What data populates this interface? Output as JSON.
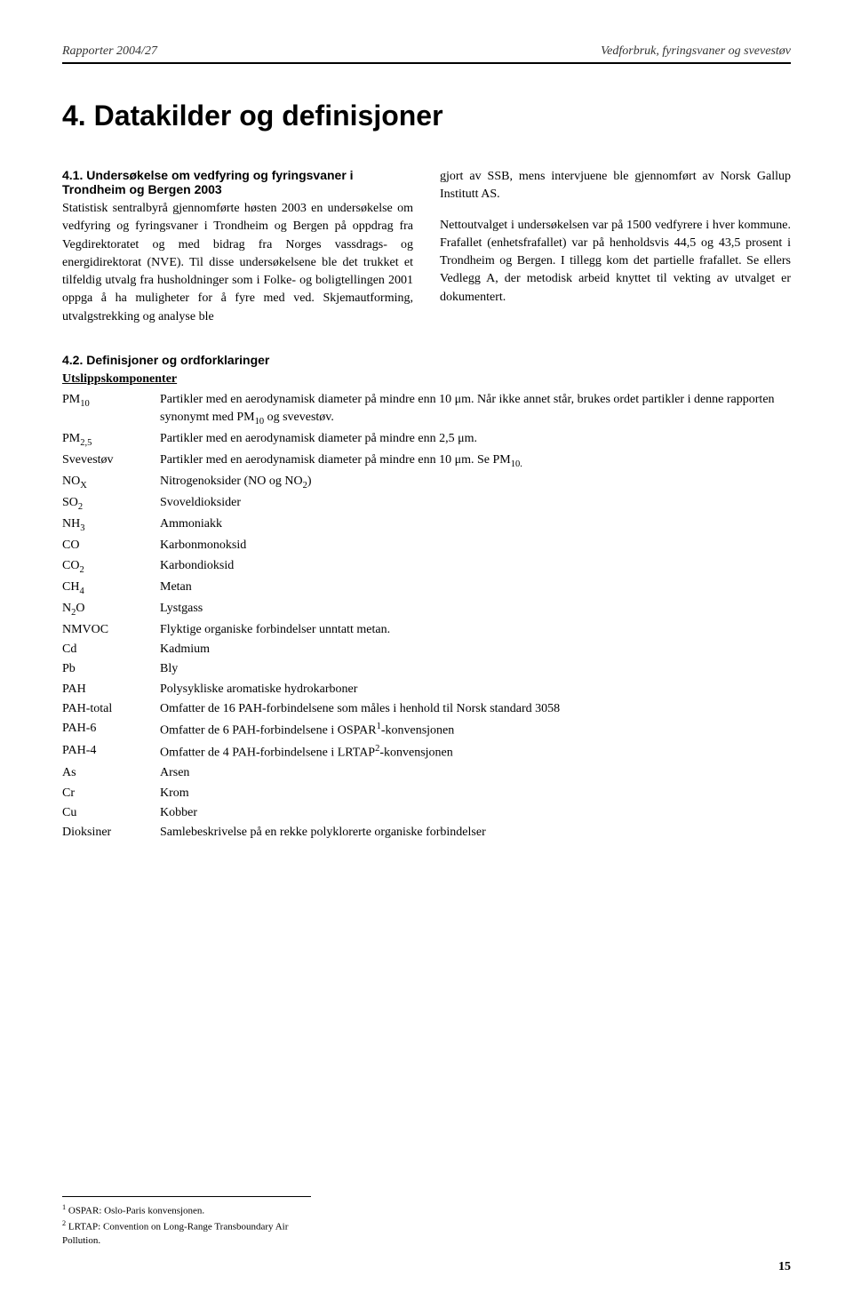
{
  "header": {
    "left": "Rapporter 2004/27",
    "right": "Vedforbruk, fyringsvaner og svevestøv"
  },
  "chapter_title": "4. Datakilder og definisjoner",
  "section41": {
    "heading": "4.1. Undersøkelse om vedfyring og fyringsvaner i Trondheim og Bergen 2003",
    "left_para": "Statistisk sentralbyrå gjennomførte høsten 2003 en undersøkelse om vedfyring og fyringsvaner i Trondheim og Bergen på oppdrag fra Vegdirektoratet og med bidrag fra Norges vassdrags- og energidirektorat (NVE). Til disse undersøkelsene ble det trukket et tilfeldig utvalg fra husholdninger som i Folke- og boligtellingen 2001 oppga å ha muligheter for å fyre med ved. Skjemautforming, utvalgstrekking og analyse ble",
    "right_para1": "gjort av SSB, mens intervjuene ble gjennomført av Norsk Gallup Institutt AS.",
    "right_para2": "Nettoutvalget i undersøkelsen var på 1500 vedfyrere i hver kommune. Frafallet (enhetsfrafallet) var på henholdsvis 44,5 og 43,5 prosent i Trondheim og Bergen. I tillegg kom det partielle frafallet. Se ellers Vedlegg A, der metodisk arbeid knyttet til vekting av utvalget er dokumentert."
  },
  "section42": {
    "heading": "4.2. Definisjoner og ordforklaringer",
    "subheading": "Utslippskomponenter",
    "rows": [
      {
        "label_html": "PM<sub>10</sub>",
        "def": "Partikler med en aerodynamisk diameter på mindre enn 10 μm. Når ikke annet står, brukes ordet partikler i denne rapporten synonymt med PM<sub>10</sub> og svevestøv."
      },
      {
        "label_html": "PM<sub>2,5</sub>",
        "def": "Partikler med en aerodynamisk diameter på mindre enn 2,5 μm."
      },
      {
        "label_html": "Svevestøv",
        "def": "Partikler med en aerodynamisk diameter på mindre enn 10 μm. Se PM<sub>10.</sub>"
      },
      {
        "label_html": "NO<sub>X</sub>",
        "def": "Nitrogenoksider (NO og NO<sub>2</sub>)"
      },
      {
        "label_html": "SO<sub>2</sub>",
        "def": "Svoveldioksider"
      },
      {
        "label_html": "NH<sub>3</sub>",
        "def": "Ammoniakk"
      },
      {
        "label_html": "CO",
        "def": "Karbonmonoksid"
      },
      {
        "label_html": "CO<sub>2</sub>",
        "def": "Karbondioksid"
      },
      {
        "label_html": "CH<sub>4</sub>",
        "def": "Metan"
      },
      {
        "label_html": "N<sub>2</sub>O",
        "def": "Lystgass"
      },
      {
        "label_html": "NMVOC",
        "def": "Flyktige organiske forbindelser unntatt metan."
      },
      {
        "label_html": "Cd",
        "def": "Kadmium"
      },
      {
        "label_html": "Pb",
        "def": "Bly"
      },
      {
        "label_html": "PAH",
        "def": "Polysykliske aromatiske hydrokarboner"
      },
      {
        "label_html": "PAH-total",
        "def": "Omfatter de 16 PAH-forbindelsene som måles i henhold til Norsk standard 3058"
      },
      {
        "label_html": "PAH-6",
        "def": "Omfatter de 6 PAH-forbindelsene i OSPAR<sup>1</sup>-konvensjonen"
      },
      {
        "label_html": "PAH-4",
        "def": "Omfatter de 4 PAH-forbindelsene i LRTAP<sup>2</sup>-konvensjonen"
      },
      {
        "label_html": "As",
        "def": "Arsen"
      },
      {
        "label_html": "Cr",
        "def": "Krom"
      },
      {
        "label_html": "Cu",
        "def": "Kobber"
      },
      {
        "label_html": "Dioksiner",
        "def": "Samlebeskrivelse på en rekke polyklorerte organiske forbindelser"
      }
    ]
  },
  "footnotes": {
    "fn1": "OSPAR: Oslo-Paris konvensjonen.",
    "fn2": "LRTAP: Convention on Long-Range Transboundary Air Pollution."
  },
  "page_number": "15"
}
